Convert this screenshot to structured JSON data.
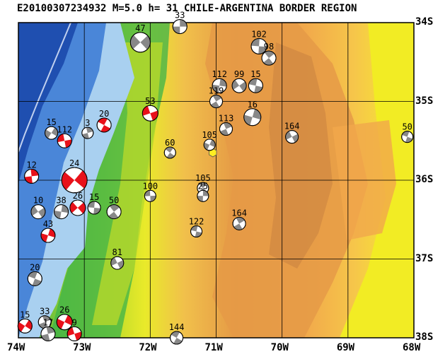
{
  "header": {
    "title": "E20100307234932 M=5.0 h= 31 CHILE-ARGENTINA BORDER REGION"
  },
  "axes": {
    "longitude_labels": [
      "74W",
      "73W",
      "72W",
      "71W",
      "70W",
      "69W",
      "68W"
    ],
    "latitude_labels": [
      "34S",
      "35S",
      "36S",
      "37S",
      "38S"
    ]
  },
  "colors": {
    "deep_ocean": "#1f4fb0",
    "ocean": "#4a86d8",
    "shallow": "#a9d0f0",
    "lowland": "#3cb34a",
    "hills": "#b6d82a",
    "plateau": "#e9ea2a",
    "highland": "#f1a84b",
    "mountain": "#e59a46",
    "peaks": "#c27a3a",
    "mechanism_compression": "#e8111a",
    "mechanism_other": "#888888",
    "epicenter_marker": "#ffee22"
  },
  "focal_mechanisms": [
    {
      "label": "33",
      "lon": -71.55,
      "lat": -34.05,
      "r": 10,
      "fill": "gray"
    },
    {
      "label": "47",
      "lon": -72.15,
      "lat": -34.25,
      "r": 14,
      "fill": "gray"
    },
    {
      "label": "102",
      "lon": -70.35,
      "lat": -34.3,
      "r": 11,
      "fill": "gray"
    },
    {
      "label": "98",
      "lon": -70.2,
      "lat": -34.45,
      "r": 10,
      "fill": "gray"
    },
    {
      "label": "112",
      "lon": -70.95,
      "lat": -34.8,
      "r": 10,
      "fill": "gray"
    },
    {
      "label": "99",
      "lon": -70.65,
      "lat": -34.8,
      "r": 10,
      "fill": "gray"
    },
    {
      "label": "15",
      "lon": -70.4,
      "lat": -34.8,
      "r": 10,
      "fill": "gray"
    },
    {
      "label": "119",
      "lon": -71.0,
      "lat": -35.0,
      "r": 9,
      "fill": "gray"
    },
    {
      "label": "16",
      "lon": -70.45,
      "lat": -35.2,
      "r": 12,
      "fill": "gray"
    },
    {
      "label": "164",
      "lon": -69.85,
      "lat": -35.45,
      "r": 9,
      "fill": "gray"
    },
    {
      "label": "50",
      "lon": -68.1,
      "lat": -35.45,
      "r": 8,
      "fill": "gray"
    },
    {
      "label": "113",
      "lon": -70.85,
      "lat": -35.35,
      "r": 9,
      "fill": "gray"
    },
    {
      "label": "105",
      "lon": -71.1,
      "lat": -35.55,
      "r": 8,
      "fill": "gray"
    },
    {
      "label": "53",
      "lon": -72.0,
      "lat": -35.15,
      "r": 11,
      "fill": "red"
    },
    {
      "label": "20",
      "lon": -72.7,
      "lat": -35.3,
      "r": 10,
      "fill": "red"
    },
    {
      "label": "3",
      "lon": -72.95,
      "lat": -35.4,
      "r": 8,
      "fill": "gray"
    },
    {
      "label": "15",
      "lon": -73.5,
      "lat": -35.4,
      "r": 9,
      "fill": "gray"
    },
    {
      "label": "112",
      "lon": -73.3,
      "lat": -35.5,
      "r": 10,
      "fill": "red"
    },
    {
      "label": "60",
      "lon": -71.7,
      "lat": -35.65,
      "r": 8,
      "fill": "gray"
    },
    {
      "label": "12",
      "lon": -73.8,
      "lat": -35.95,
      "r": 10,
      "fill": "red"
    },
    {
      "label": "24",
      "lon": -73.15,
      "lat": -36.0,
      "r": 18,
      "fill": "red"
    },
    {
      "label": "100",
      "lon": -72.0,
      "lat": -36.2,
      "r": 8,
      "fill": "gray"
    },
    {
      "label": "105",
      "lon": -71.2,
      "lat": -36.1,
      "r": 8,
      "fill": "gray"
    },
    {
      "label": "25",
      "lon": -71.2,
      "lat": -36.2,
      "r": 8,
      "fill": "gray"
    },
    {
      "label": "26",
      "lon": -73.1,
      "lat": -36.35,
      "r": 11,
      "fill": "red"
    },
    {
      "label": "15",
      "lon": -72.85,
      "lat": -36.35,
      "r": 9,
      "fill": "gray"
    },
    {
      "label": "50",
      "lon": -72.55,
      "lat": -36.4,
      "r": 10,
      "fill": "gray"
    },
    {
      "label": "38",
      "lon": -73.35,
      "lat": -36.4,
      "r": 10,
      "fill": "gray"
    },
    {
      "label": "10",
      "lon": -73.7,
      "lat": -36.4,
      "r": 10,
      "fill": "gray"
    },
    {
      "label": "122",
      "lon": -71.3,
      "lat": -36.65,
      "r": 8,
      "fill": "gray"
    },
    {
      "label": "164",
      "lon": -70.65,
      "lat": -36.55,
      "r": 9,
      "fill": "gray"
    },
    {
      "label": "43",
      "lon": -73.55,
      "lat": -36.7,
      "r": 10,
      "fill": "red"
    },
    {
      "label": "81",
      "lon": -72.5,
      "lat": -37.05,
      "r": 9,
      "fill": "gray"
    },
    {
      "label": "20",
      "lon": -73.75,
      "lat": -37.25,
      "r": 10,
      "fill": "gray"
    },
    {
      "label": "33",
      "lon": -73.6,
      "lat": -37.8,
      "r": 9,
      "fill": "gray"
    },
    {
      "label": "26",
      "lon": -73.3,
      "lat": -37.8,
      "r": 11,
      "fill": "red"
    },
    {
      "label": "9",
      "lon": -73.15,
      "lat": -37.95,
      "r": 10,
      "fill": "red"
    },
    {
      "label": "144",
      "lon": -71.6,
      "lat": -38.0,
      "r": 9,
      "fill": "gray"
    },
    {
      "label": "17",
      "lon": -73.55,
      "lat": -37.95,
      "r": 10,
      "fill": "gray"
    },
    {
      "label": "15",
      "lon": -73.9,
      "lat": -37.85,
      "r": 10,
      "fill": "red"
    }
  ],
  "epicenter": {
    "lon": -71.05,
    "lat": -35.65
  }
}
